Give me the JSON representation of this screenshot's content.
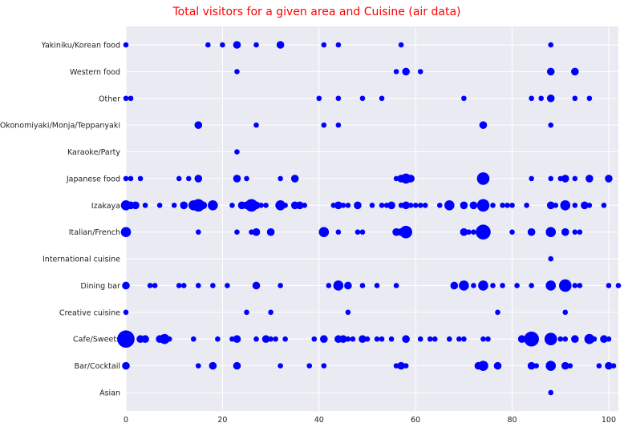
{
  "chart_data": {
    "type": "scatter",
    "title": "Total visitors for a given area and Cuisine (air data)",
    "xlabel": "",
    "ylabel": "",
    "xlim": [
      0,
      102
    ],
    "x_ticks": [
      0,
      20,
      40,
      60,
      80,
      100
    ],
    "categories": [
      "Asian",
      "Bar/Cocktail",
      "Cafe/Sweets",
      "Creative cuisine",
      "Dining bar",
      "International cuisine",
      "Italian/French",
      "Izakaya",
      "Japanese food",
      "Karaoke/Party",
      "Okonomiyaki/Monja/Teppanyaki",
      "Other",
      "Western food",
      "Yakiniku/Korean food"
    ],
    "grid": true,
    "colors": {
      "marker": "#0000ff",
      "background": "#eaeaf2",
      "grid": "#ffffff",
      "title": "#ff0000"
    },
    "series": [
      {
        "category": "Asian",
        "points": [
          [
            88,
            1
          ]
        ]
      },
      {
        "category": "Bar/Cocktail",
        "points": [
          [
            0,
            2
          ],
          [
            15,
            1
          ],
          [
            18,
            2
          ],
          [
            23,
            2
          ],
          [
            32,
            1
          ],
          [
            38,
            1
          ],
          [
            41,
            1
          ],
          [
            56,
            1
          ],
          [
            57,
            2
          ],
          [
            58,
            1
          ],
          [
            73,
            2
          ],
          [
            74,
            3
          ],
          [
            77,
            2
          ],
          [
            84,
            2
          ],
          [
            85,
            1
          ],
          [
            88,
            3
          ],
          [
            91,
            2
          ],
          [
            92,
            1
          ],
          [
            98,
            1
          ],
          [
            100,
            2
          ],
          [
            101,
            1
          ]
        ]
      },
      {
        "category": "Cafe/Sweets",
        "points": [
          [
            0,
            6
          ],
          [
            3,
            2
          ],
          [
            4,
            2
          ],
          [
            7,
            2
          ],
          [
            8,
            3
          ],
          [
            9,
            1
          ],
          [
            14,
            1
          ],
          [
            19,
            1
          ],
          [
            22,
            1
          ],
          [
            23,
            2
          ],
          [
            27,
            1
          ],
          [
            29,
            2
          ],
          [
            30,
            1
          ],
          [
            31,
            1
          ],
          [
            33,
            1
          ],
          [
            39,
            1
          ],
          [
            41,
            2
          ],
          [
            44,
            2
          ],
          [
            45,
            2
          ],
          [
            46,
            1
          ],
          [
            47,
            1
          ],
          [
            49,
            2
          ],
          [
            50,
            1
          ],
          [
            52,
            1
          ],
          [
            53,
            1
          ],
          [
            55,
            1
          ],
          [
            58,
            2
          ],
          [
            61,
            1
          ],
          [
            63,
            1
          ],
          [
            64,
            1
          ],
          [
            67,
            1
          ],
          [
            69,
            1
          ],
          [
            70,
            1
          ],
          [
            74,
            1
          ],
          [
            75,
            1
          ],
          [
            82,
            2
          ],
          [
            84,
            5
          ],
          [
            88,
            4
          ],
          [
            90,
            1
          ],
          [
            91,
            1
          ],
          [
            93,
            2
          ],
          [
            96,
            3
          ],
          [
            97,
            1
          ],
          [
            99,
            2
          ],
          [
            100,
            1
          ]
        ]
      },
      {
        "category": "Creative cuisine",
        "points": [
          [
            0,
            1
          ],
          [
            25,
            1
          ],
          [
            30,
            1
          ],
          [
            46,
            1
          ],
          [
            77,
            1
          ],
          [
            91,
            1
          ]
        ]
      },
      {
        "category": "Dining bar",
        "points": [
          [
            0,
            2
          ],
          [
            5,
            1
          ],
          [
            6,
            1
          ],
          [
            11,
            1
          ],
          [
            12,
            1
          ],
          [
            15,
            1
          ],
          [
            18,
            1
          ],
          [
            21,
            1
          ],
          [
            27,
            2
          ],
          [
            32,
            1
          ],
          [
            42,
            1
          ],
          [
            44,
            3
          ],
          [
            46,
            2
          ],
          [
            49,
            1
          ],
          [
            52,
            1
          ],
          [
            56,
            1
          ],
          [
            68,
            2
          ],
          [
            70,
            3
          ],
          [
            72,
            1
          ],
          [
            74,
            3
          ],
          [
            76,
            1
          ],
          [
            78,
            1
          ],
          [
            81,
            1
          ],
          [
            84,
            1
          ],
          [
            88,
            3
          ],
          [
            91,
            4
          ],
          [
            93,
            1
          ],
          [
            94,
            1
          ],
          [
            100,
            1
          ],
          [
            102,
            1
          ]
        ]
      },
      {
        "category": "International cuisine",
        "points": [
          [
            88,
            1
          ]
        ]
      },
      {
        "category": "Italian/French",
        "points": [
          [
            0,
            3
          ],
          [
            15,
            1
          ],
          [
            23,
            1
          ],
          [
            26,
            1
          ],
          [
            27,
            2
          ],
          [
            30,
            2
          ],
          [
            41,
            3
          ],
          [
            44,
            1
          ],
          [
            48,
            1
          ],
          [
            49,
            1
          ],
          [
            56,
            2
          ],
          [
            57,
            2
          ],
          [
            58,
            4
          ],
          [
            70,
            2
          ],
          [
            71,
            1
          ],
          [
            72,
            1
          ],
          [
            74,
            5
          ],
          [
            80,
            1
          ],
          [
            84,
            2
          ],
          [
            88,
            3
          ],
          [
            91,
            2
          ],
          [
            93,
            1
          ],
          [
            94,
            1
          ]
        ]
      },
      {
        "category": "Izakaya",
        "points": [
          [
            0,
            3
          ],
          [
            1,
            2
          ],
          [
            2,
            2
          ],
          [
            4,
            1
          ],
          [
            7,
            1
          ],
          [
            10,
            1
          ],
          [
            12,
            2
          ],
          [
            14,
            3
          ],
          [
            15,
            4
          ],
          [
            16,
            2
          ],
          [
            18,
            3
          ],
          [
            22,
            1
          ],
          [
            24,
            2
          ],
          [
            25,
            2
          ],
          [
            26,
            4
          ],
          [
            27,
            2
          ],
          [
            28,
            1
          ],
          [
            29,
            1
          ],
          [
            32,
            3
          ],
          [
            33,
            1
          ],
          [
            35,
            2
          ],
          [
            36,
            2
          ],
          [
            37,
            1
          ],
          [
            43,
            1
          ],
          [
            44,
            2
          ],
          [
            45,
            1
          ],
          [
            46,
            1
          ],
          [
            48,
            2
          ],
          [
            51,
            1
          ],
          [
            53,
            1
          ],
          [
            54,
            1
          ],
          [
            55,
            2
          ],
          [
            57,
            1
          ],
          [
            58,
            2
          ],
          [
            59,
            1
          ],
          [
            60,
            1
          ],
          [
            61,
            1
          ],
          [
            62,
            1
          ],
          [
            65,
            1
          ],
          [
            67,
            3
          ],
          [
            70,
            2
          ],
          [
            72,
            2
          ],
          [
            74,
            4
          ],
          [
            76,
            1
          ],
          [
            78,
            1
          ],
          [
            79,
            1
          ],
          [
            80,
            1
          ],
          [
            83,
            1
          ],
          [
            88,
            2
          ],
          [
            89,
            1
          ],
          [
            91,
            3
          ],
          [
            93,
            1
          ],
          [
            95,
            2
          ],
          [
            96,
            1
          ],
          [
            99,
            1
          ]
        ]
      },
      {
        "category": "Japanese food",
        "points": [
          [
            0,
            1
          ],
          [
            1,
            1
          ],
          [
            3,
            1
          ],
          [
            11,
            1
          ],
          [
            13,
            1
          ],
          [
            15,
            2
          ],
          [
            23,
            2
          ],
          [
            25,
            1
          ],
          [
            32,
            1
          ],
          [
            35,
            2
          ],
          [
            56,
            1
          ],
          [
            57,
            2
          ],
          [
            58,
            3
          ],
          [
            59,
            2
          ],
          [
            74,
            4
          ],
          [
            84,
            1
          ],
          [
            88,
            1
          ],
          [
            90,
            1
          ],
          [
            91,
            2
          ],
          [
            93,
            1
          ],
          [
            96,
            2
          ],
          [
            100,
            2
          ]
        ]
      },
      {
        "category": "Karaoke/Party",
        "points": [
          [
            23,
            1
          ]
        ]
      },
      {
        "category": "Okonomiyaki/Monja/Teppanyaki",
        "points": [
          [
            15,
            2
          ],
          [
            27,
            1
          ],
          [
            41,
            1
          ],
          [
            44,
            1
          ],
          [
            74,
            2
          ],
          [
            88,
            1
          ]
        ]
      },
      {
        "category": "Other",
        "points": [
          [
            0,
            1
          ],
          [
            1,
            1
          ],
          [
            40,
            1
          ],
          [
            44,
            1
          ],
          [
            49,
            1
          ],
          [
            53,
            1
          ],
          [
            70,
            1
          ],
          [
            84,
            1
          ],
          [
            86,
            1
          ],
          [
            88,
            2
          ],
          [
            93,
            1
          ],
          [
            96,
            1
          ]
        ]
      },
      {
        "category": "Western food",
        "points": [
          [
            23,
            1
          ],
          [
            56,
            1
          ],
          [
            58,
            2
          ],
          [
            61,
            1
          ],
          [
            88,
            2
          ],
          [
            93,
            2
          ]
        ]
      },
      {
        "category": "Yakiniku/Korean food",
        "points": [
          [
            0,
            1
          ],
          [
            17,
            1
          ],
          [
            20,
            1
          ],
          [
            23,
            2
          ],
          [
            27,
            1
          ],
          [
            32,
            2
          ],
          [
            41,
            1
          ],
          [
            44,
            1
          ],
          [
            57,
            1
          ],
          [
            88,
            1
          ]
        ]
      }
    ]
  }
}
